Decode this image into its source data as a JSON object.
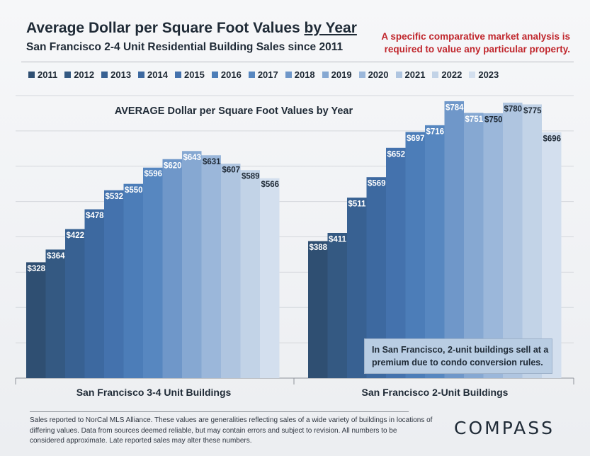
{
  "header": {
    "title_main": "Average Dollar per Square Foot Values ",
    "title_underlined": "by Year",
    "subtitle": "San Francisco 2-4 Unit Residential Building Sales since 2011",
    "disclaimer": "A specific comparative market analysis is required to value any particular property."
  },
  "legend": {
    "items": [
      {
        "label": "2011",
        "color": "#2f4f72"
      },
      {
        "label": "2012",
        "color": "#345982"
      },
      {
        "label": "2013",
        "color": "#386192"
      },
      {
        "label": "2014",
        "color": "#3d69a0"
      },
      {
        "label": "2015",
        "color": "#4472ad"
      },
      {
        "label": "2016",
        "color": "#4c7db8"
      },
      {
        "label": "2017",
        "color": "#5787c0"
      },
      {
        "label": "2018",
        "color": "#6f97c9"
      },
      {
        "label": "2019",
        "color": "#86a8d2"
      },
      {
        "label": "2020",
        "color": "#9bb7da"
      },
      {
        "label": "2021",
        "color": "#afc5e0"
      },
      {
        "label": "2022",
        "color": "#c2d3e7"
      },
      {
        "label": "2023",
        "color": "#d3dfee"
      }
    ]
  },
  "chart_data": {
    "type": "bar",
    "title": "AVERAGE Dollar per Square Foot Values by Year",
    "categories": [
      "San Francisco 3-4 Unit Buildings",
      "San Francisco 2-Unit Buildings"
    ],
    "series_names": [
      "2011",
      "2012",
      "2013",
      "2014",
      "2015",
      "2016",
      "2017",
      "2018",
      "2019",
      "2020",
      "2021",
      "2022",
      "2023"
    ],
    "groups": [
      {
        "name": "San Francisco 3-4 Unit Buildings",
        "values": [
          328,
          364,
          422,
          478,
          532,
          550,
          596,
          620,
          643,
          631,
          607,
          589,
          566
        ]
      },
      {
        "name": "San Francisco 2-Unit Buildings",
        "values": [
          388,
          411,
          511,
          569,
          652,
          697,
          716,
          784,
          751,
          750,
          780,
          775,
          696
        ]
      }
    ],
    "value_labels": {
      "San Francisco 3-4 Unit Buildings": [
        "$328",
        "$364",
        "$422",
        "$478",
        "$532",
        "$550",
        "$596",
        "$620",
        "$643",
        "$631",
        "$607",
        "$589",
        "$566"
      ],
      "San Francisco 2-Unit Buildings": [
        "$388",
        "$411",
        "$511",
        "$569",
        "$652",
        "$697",
        "$716",
        "$784",
        "$751",
        "$750",
        "$780",
        "$775",
        "$696"
      ]
    },
    "ylim": [
      0,
      820
    ],
    "xlabel": "",
    "ylabel": "",
    "grid": true,
    "legend_position": "top"
  },
  "annotation": {
    "note": "In San Francisco, 2-unit buildings sell at a premium due to condo conversion rules."
  },
  "footer": {
    "text": "Sales reported to NorCal MLS Alliance. These values are generalities reflecting sales of a wide variety of buildings in locations of differing values. Data from sources deemed reliable, but may contain errors and subject to revision. All numbers to be considered approximate. Late reported sales may alter these numbers.",
    "logo": "COMPASS"
  }
}
